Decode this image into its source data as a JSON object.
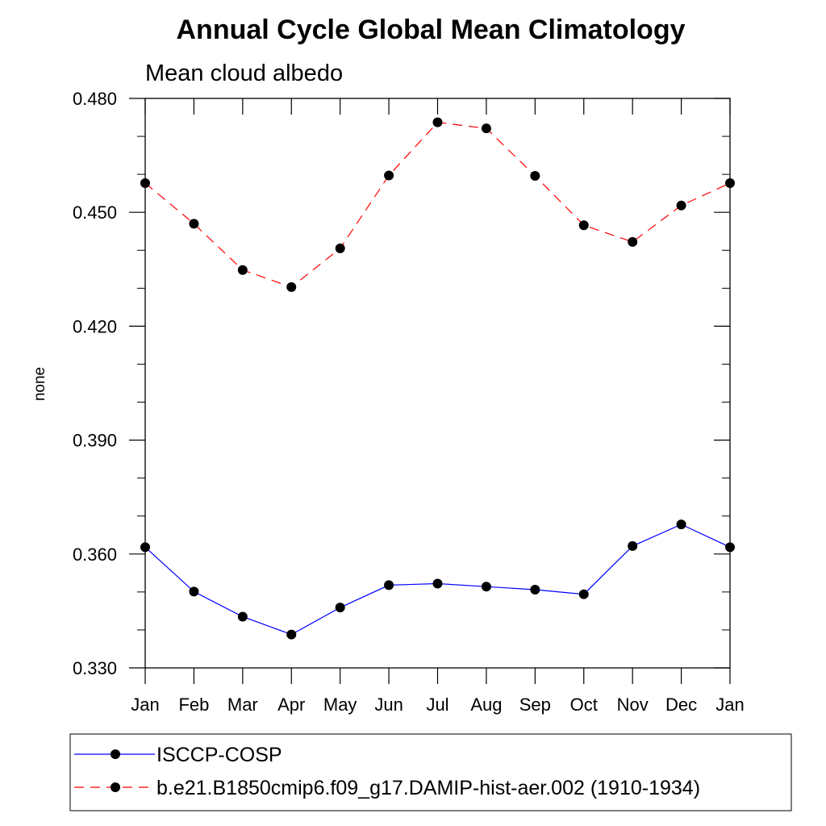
{
  "chart_data": {
    "type": "line",
    "title": "Annual Cycle Global Mean Climatology",
    "subtitle": "Mean cloud albedo",
    "xlabel": "",
    "ylabel": "none",
    "categories": [
      "Jan",
      "Feb",
      "Mar",
      "Apr",
      "May",
      "Jun",
      "Jul",
      "Aug",
      "Sep",
      "Oct",
      "Nov",
      "Dec",
      "Jan"
    ],
    "ylim": [
      0.33,
      0.48
    ],
    "yticks": [
      0.33,
      0.36,
      0.39,
      0.42,
      0.45,
      0.48
    ],
    "ytick_labels": [
      "0.330",
      "0.360",
      "0.390",
      "0.420",
      "0.450",
      "0.480"
    ],
    "grid": false,
    "legend_position": "bottom",
    "series": [
      {
        "name": "ISCCP-COSP",
        "color": "#0000ff",
        "dash": "solid",
        "marker": "circle",
        "values": [
          0.3618,
          0.3501,
          0.3435,
          0.3388,
          0.3459,
          0.3518,
          0.3522,
          0.3514,
          0.3506,
          0.3494,
          0.3621,
          0.3678,
          0.3618
        ]
      },
      {
        "name": "b.e21.B1850cmip6.f09_g17.DAMIP-hist-aer.002 (1910-1934)",
        "color": "#ff0000",
        "dash": "dashed",
        "marker": "circle",
        "values": [
          0.4577,
          0.447,
          0.4348,
          0.4303,
          0.4405,
          0.4597,
          0.4737,
          0.4721,
          0.4596,
          0.4466,
          0.4422,
          0.4518,
          0.4577
        ]
      }
    ]
  }
}
